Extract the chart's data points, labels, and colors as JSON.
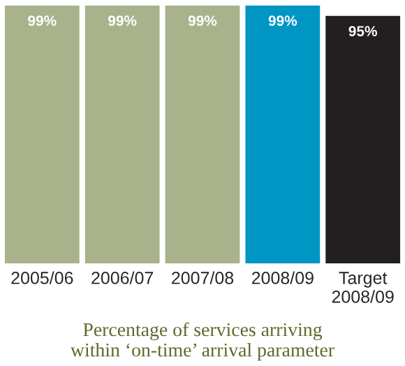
{
  "chart_data": {
    "type": "bar",
    "title": "Percentage of services arriving\nwithin ‘on-time’ arrival parameter",
    "categories": [
      "2005/06",
      "2006/07",
      "2007/08",
      "2008/09",
      "Target\n2008/09"
    ],
    "values": [
      99,
      99,
      99,
      99,
      95
    ],
    "value_labels": [
      "99%",
      "99%",
      "99%",
      "99%",
      "95%"
    ],
    "colors": [
      "#a9b38b",
      "#a9b38b",
      "#a9b38b",
      "#0096c4",
      "#231f20"
    ],
    "grid": false,
    "legend": false
  }
}
